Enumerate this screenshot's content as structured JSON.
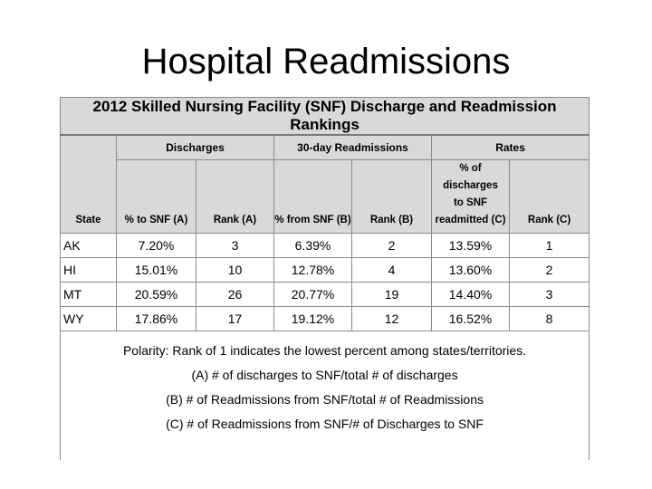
{
  "slide": {
    "title": "Hospital Readmissions"
  },
  "table": {
    "title": "2012 Skilled Nursing Facility (SNF) Discharge and Readmission Rankings",
    "groups": {
      "discharges": "Discharges",
      "readmissions": "30-day Readmissions",
      "rates": "Rates"
    },
    "columns": {
      "state": "State",
      "pct_to_snf": "% to SNF (A)",
      "rank_a": "Rank (A)",
      "pct_from_snf": "% from SNF (B)",
      "rank_b": "Rank (B)",
      "pct_readmitted_line1": "% of discharges",
      "pct_readmitted_line2": "to SNF",
      "pct_readmitted_line3": "readmitted (C)",
      "rank_c": "Rank (C)"
    },
    "rows": [
      {
        "state": "AK",
        "pct_to_snf": "7.20%",
        "rank_a": "3",
        "pct_from_snf": "6.39%",
        "rank_b": "2",
        "pct_readmitted": "13.59%",
        "rank_c": "1"
      },
      {
        "state": "HI",
        "pct_to_snf": "15.01%",
        "rank_a": "10",
        "pct_from_snf": "12.78%",
        "rank_b": "4",
        "pct_readmitted": "13.60%",
        "rank_c": "2"
      },
      {
        "state": "MT",
        "pct_to_snf": "20.59%",
        "rank_a": "26",
        "pct_from_snf": "20.77%",
        "rank_b": "19",
        "pct_readmitted": "14.40%",
        "rank_c": "3"
      },
      {
        "state": "WY",
        "pct_to_snf": "17.86%",
        "rank_a": "17",
        "pct_from_snf": "19.12%",
        "rank_b": "12",
        "pct_readmitted": "16.52%",
        "rank_c": "8"
      }
    ],
    "notes": {
      "polarity": "Polarity: Rank of 1 indicates the lowest percent among states/territories.",
      "a": "(A) # of discharges to SNF/total # of discharges",
      "b": "(B) # of Readmissions from SNF/total # of Readmissions",
      "c": "(C) # of Readmissions from SNF/# of Discharges to SNF"
    }
  }
}
